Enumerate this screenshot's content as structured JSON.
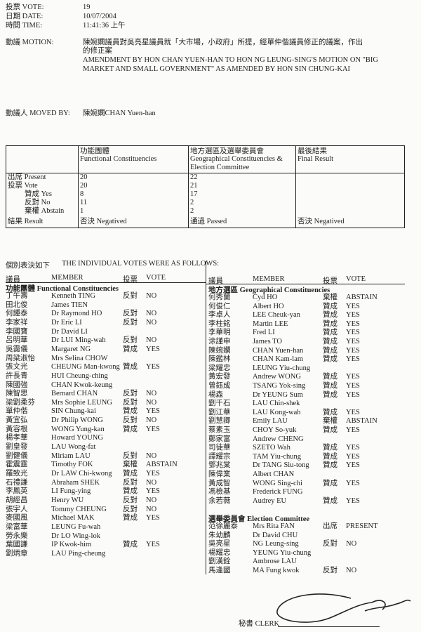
{
  "header": {
    "vote_label": "投票 VOTE:",
    "vote": "19",
    "date_label": "日期 DATE:",
    "date": "10/07/2004",
    "time_label": "時間 TIME:",
    "time": "11:41:36 上午",
    "motion_label": "動議 MOTION:",
    "motion_zh_1": "陳婉嫻議員對吳亮星議員就「大市場，小政府」所提，經單仲偕議員修正的議案，作出",
    "motion_zh_2": "的修正案",
    "motion_en_1": "AMENDMENT BY HON CHAN YUEN-HAN TO HON NG LEUNG-SING'S MOTION ON \"BIG",
    "motion_en_2": "MARKET AND SMALL GOVERNMENT\" AS AMENDED BY HON SIN CHUNG-KAI",
    "moved_by_label": "動議人 MOVED BY:",
    "moved_by": "陳婉嫻CHAN Yuen-han"
  },
  "summary": {
    "col_fc_zh": "功能團體",
    "col_fc_en": "Functional Constituencies",
    "col_gc_zh": "地方選區及選舉委員會",
    "col_gc_en1": "Geographical Constituencies &",
    "col_gc_en2": "Election Committee",
    "col_final_zh": "最後結果",
    "col_final_en": "Final Result",
    "row_labels": [
      "出席 Present",
      "投票 Vote",
      "贊成 Yes",
      "反對 No",
      "棄權 Abstain",
      "結果 Result"
    ],
    "fc": [
      "20",
      "20",
      "8",
      "11",
      "1",
      "否決 Negatived"
    ],
    "gc": [
      "22",
      "21",
      "17",
      "2",
      "2",
      "通過 Passed"
    ],
    "final": "否決 Negatived"
  },
  "votes": {
    "intro_zh": "個別表決如下",
    "intro_en": "THE INDIVIDUAL VOTES WERE AS FOLLOWS:",
    "col_member_zh": "議員",
    "col_member_en": "MEMBER",
    "col_vote_zh": "投票",
    "col_vote_en": "VOTE",
    "fc_title": "功能團體 Functional Constituencies",
    "gc_title": "地方選區 Geographical Constituencies",
    "ec_title": "選舉委員會 Election Committee",
    "fc": [
      [
        "丁午壽",
        "Kenneth TING",
        "反對",
        "NO"
      ],
      [
        "田北俊",
        "James TIEN",
        "",
        ""
      ],
      [
        "何鍾泰",
        "Dr Raymond HO",
        "反對",
        "NO"
      ],
      [
        "李家祥",
        "Dr Eric LI",
        "反對",
        "NO"
      ],
      [
        "李國寶",
        "Dr David LI",
        "",
        ""
      ],
      [
        "呂明華",
        "Dr LUI Ming-wah",
        "反對",
        "NO"
      ],
      [
        "吳靄儀",
        "Margaret NG",
        "贊成",
        "YES"
      ],
      [
        "周梁淑怡",
        "Mrs Selina CHOW",
        "",
        ""
      ],
      [
        "張文光",
        "CHEUNG Man-kwong",
        "贊成",
        "YES"
      ],
      [
        "許長青",
        "HUI Cheung-ching",
        "",
        ""
      ],
      [
        "陳國強",
        "CHAN Kwok-keung",
        "",
        ""
      ],
      [
        "陳智思",
        "Bernard CHAN",
        "反對",
        "NO"
      ],
      [
        "梁劉柔芬",
        "Mrs Sophie LEUNG",
        "反對",
        "NO"
      ],
      [
        "單仲偕",
        "SIN Chung-kai",
        "贊成",
        "YES"
      ],
      [
        "黃宜弘",
        "Dr Philip WONG",
        "反對",
        "NO"
      ],
      [
        "黃容根",
        "WONG Yung-kan",
        "贊成",
        "YES"
      ],
      [
        "楊孝華",
        "Howard YOUNG",
        "",
        ""
      ],
      [
        "劉皇發",
        "LAU Wong-fat",
        "",
        ""
      ],
      [
        "劉健儀",
        "Miriam LAU",
        "反對",
        "NO"
      ],
      [
        "霍震霆",
        "Timothy FOK",
        "棄權",
        "ABSTAIN"
      ],
      [
        "羅致光",
        "Dr LAW Chi-kwong",
        "贊成",
        "YES"
      ],
      [
        "石禮謙",
        "Abraham SHEK",
        "反對",
        "NO"
      ],
      [
        "李鳳英",
        "LI Fung-ying",
        "贊成",
        "YES"
      ],
      [
        "胡經昌",
        "Henry WU",
        "反對",
        "NO"
      ],
      [
        "張宇人",
        "Tommy CHEUNG",
        "反對",
        "NO"
      ],
      [
        "麥國風",
        "Michael MAK",
        "贊成",
        "YES"
      ],
      [
        "梁富華",
        "LEUNG Fu-wah",
        "",
        ""
      ],
      [
        "勞永樂",
        "Dr LO Wing-lok",
        "",
        ""
      ],
      [
        "葉國謙",
        "IP Kwok-him",
        "贊成",
        "YES"
      ],
      [
        "劉炳章",
        "LAU Ping-cheung",
        "",
        ""
      ]
    ],
    "gc": [
      [
        "何秀蘭",
        "Cyd HO",
        "棄權",
        "ABSTAIN"
      ],
      [
        "何俊仁",
        "Albert HO",
        "贊成",
        "YES"
      ],
      [
        "李卓人",
        "LEE Cheuk-yan",
        "贊成",
        "YES"
      ],
      [
        "李柱銘",
        "Martin LEE",
        "贊成",
        "YES"
      ],
      [
        "李華明",
        "Fred LI",
        "贊成",
        "YES"
      ],
      [
        "涂謹申",
        "James TO",
        "贊成",
        "YES"
      ],
      [
        "陳婉嫻",
        "CHAN Yuen-han",
        "贊成",
        "YES"
      ],
      [
        "陳鑑林",
        "CHAN Kam-lam",
        "贊成",
        "YES"
      ],
      [
        "梁耀忠",
        "LEUNG Yiu-chung",
        "",
        ""
      ],
      [
        "黃宏發",
        "Andrew WONG",
        "贊成",
        "YES"
      ],
      [
        "曾鈺成",
        "TSANG Yok-sing",
        "贊成",
        "YES"
      ],
      [
        "楊森",
        "Dr YEUNG Sum",
        "贊成",
        "YES"
      ],
      [
        "劉千石",
        "LAU Chin-shek",
        "",
        ""
      ],
      [
        "劉江華",
        "LAU Kong-wah",
        "贊成",
        "YES"
      ],
      [
        "劉慧卿",
        "Emily LAU",
        "棄權",
        "ABSTAIN"
      ],
      [
        "蔡素玉",
        "CHOY So-yuk",
        "贊成",
        "YES"
      ],
      [
        "鄭家富",
        "Andrew CHENG",
        "",
        ""
      ],
      [
        "司徒華",
        "SZETO Wah",
        "贊成",
        "YES"
      ],
      [
        "譚耀宗",
        "TAM Yiu-chung",
        "贊成",
        "YES"
      ],
      [
        "鄧兆棠",
        "Dr TANG Siu-tong",
        "贊成",
        "YES"
      ],
      [
        "陳偉業",
        "Albert CHAN",
        "",
        ""
      ],
      [
        "黃成智",
        "WONG Sing-chi",
        "贊成",
        "YES"
      ],
      [
        "馮檢基",
        "Frederick FUNG",
        "",
        ""
      ],
      [
        "余若薇",
        "Audrey EU",
        "贊成",
        "YES"
      ]
    ],
    "ec": [
      [
        "范徐麗泰",
        "Mrs Rita FAN",
        "出席",
        "PRESENT"
      ],
      [
        "朱幼麟",
        "Dr David CHU",
        "",
        ""
      ],
      [
        "吳亮星",
        "NG Leung-sing",
        "反對",
        "NO"
      ],
      [
        "楊耀忠",
        "YEUNG Yiu-chung",
        "",
        ""
      ],
      [
        "劉漢銓",
        "Ambrose LAU",
        "",
        ""
      ],
      [
        "馬逢國",
        "MA Fung kwok",
        "反對",
        "NO"
      ]
    ]
  },
  "footer": {
    "clerk_label": "秘書 CLERK"
  }
}
